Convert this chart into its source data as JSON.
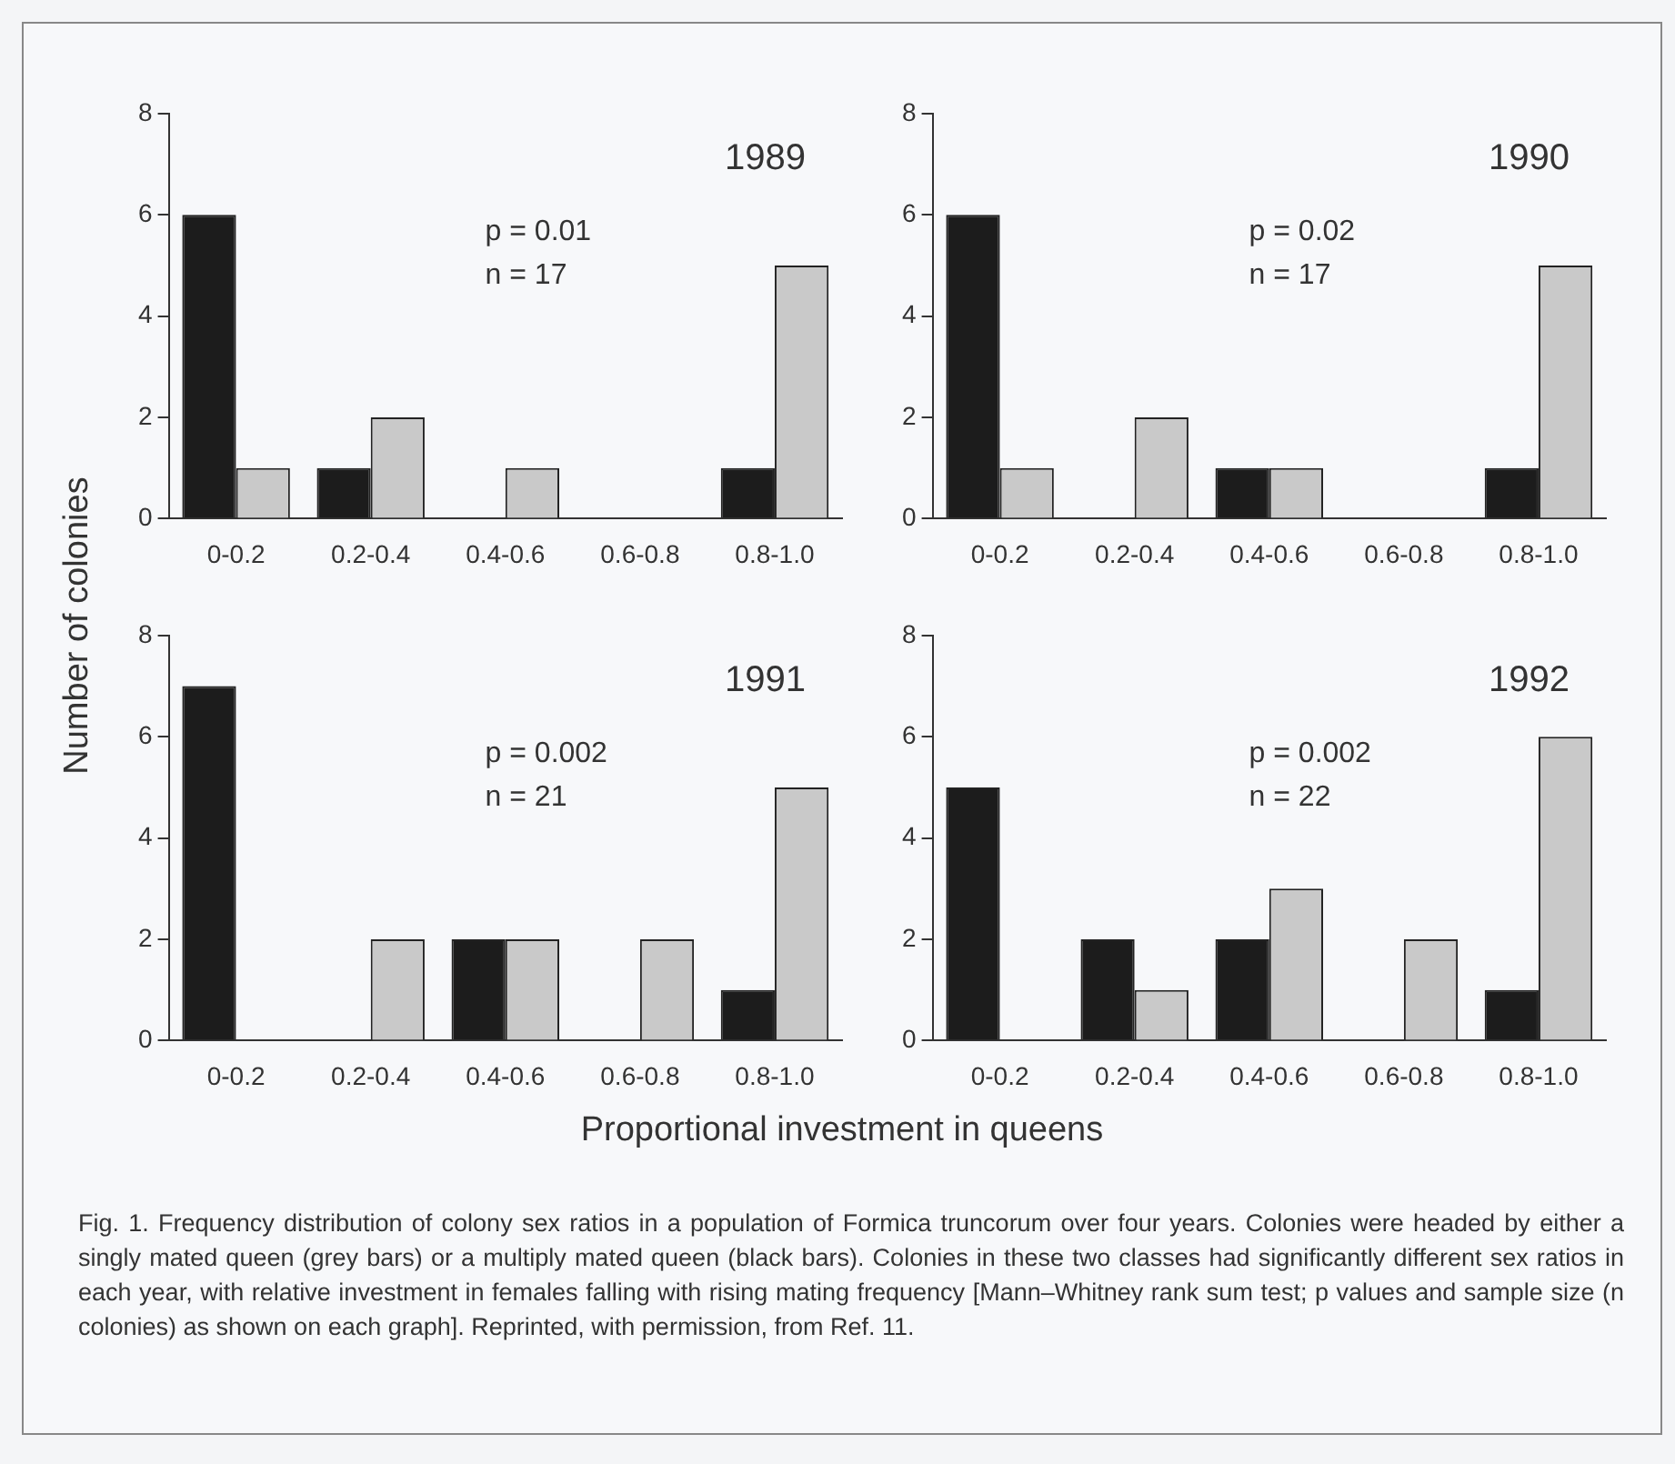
{
  "chart_data": [
    {
      "type": "bar",
      "title": "1989",
      "ylabel": "Number of colonies",
      "categories": [
        "0-0.2",
        "0.2-0.4",
        "0.4-0.6",
        "0.6-0.8",
        "0.8-1.0"
      ],
      "series": [
        {
          "color": "#1c1c1c",
          "values": [
            6,
            1,
            0,
            0,
            1
          ]
        },
        {
          "color": "#c9c9c9",
          "values": [
            1,
            2,
            1,
            0,
            5
          ]
        }
      ],
      "ylim": [
        0,
        8
      ],
      "yticks": [
        0,
        2,
        4,
        6,
        8
      ],
      "grid": false,
      "legend": false,
      "annotations": [
        "p = 0.01",
        "n = 17"
      ]
    },
    {
      "type": "bar",
      "title": "1990",
      "categories": [
        "0-0.2",
        "0.2-0.4",
        "0.4-0.6",
        "0.6-0.8",
        "0.8-1.0"
      ],
      "series": [
        {
          "color": "#1c1c1c",
          "values": [
            6,
            0,
            1,
            0,
            1
          ]
        },
        {
          "color": "#c9c9c9",
          "values": [
            1,
            2,
            1,
            0,
            5
          ]
        }
      ],
      "ylim": [
        0,
        8
      ],
      "yticks": [
        0,
        2,
        4,
        6,
        8
      ],
      "grid": false,
      "legend": false,
      "annotations": [
        "p = 0.02",
        "n = 17"
      ]
    },
    {
      "type": "bar",
      "title": "1991",
      "xlabel": "Proportional investment in queens",
      "categories": [
        "0-0.2",
        "0.2-0.4",
        "0.4-0.6",
        "0.6-0.8",
        "0.8-1.0"
      ],
      "series": [
        {
          "color": "#1c1c1c",
          "values": [
            7,
            0,
            2,
            0,
            1
          ]
        },
        {
          "color": "#c9c9c9",
          "values": [
            0,
            2,
            2,
            2,
            5
          ]
        }
      ],
      "ylim": [
        0,
        8
      ],
      "yticks": [
        0,
        2,
        4,
        6,
        8
      ],
      "grid": false,
      "legend": false,
      "annotations": [
        "p = 0.002",
        "n = 21"
      ]
    },
    {
      "type": "bar",
      "title": "1992",
      "categories": [
        "0-0.2",
        "0.2-0.4",
        "0.4-0.6",
        "0.6-0.8",
        "0.8-1.0"
      ],
      "series": [
        {
          "color": "#1c1c1c",
          "values": [
            5,
            2,
            2,
            0,
            1
          ]
        },
        {
          "color": "#c9c9c9",
          "values": [
            0,
            1,
            3,
            2,
            6
          ]
        }
      ],
      "ylim": [
        0,
        8
      ],
      "yticks": [
        0,
        2,
        4,
        6,
        8
      ],
      "grid": false,
      "legend": false,
      "annotations": [
        "p = 0.002",
        "n = 22"
      ]
    },
    {
      "type": "other",
      "annotations": [
        "Fig. 1. Frequency distribution of colony sex ratios in a population of Formica truncorum over four years. Colonies were headed by either a singly mated queen (grey bars) or a multiply mated queen (black bars). Colonies in these two classes had significantly different sex ratios in each year, with relative investment in females falling with rising mating frequency [Mann–Whitney rank sum test; p values and sample size (n colonies) as shown on each graph]. Reprinted, with permission, from Ref. 11."
      ]
    }
  ]
}
